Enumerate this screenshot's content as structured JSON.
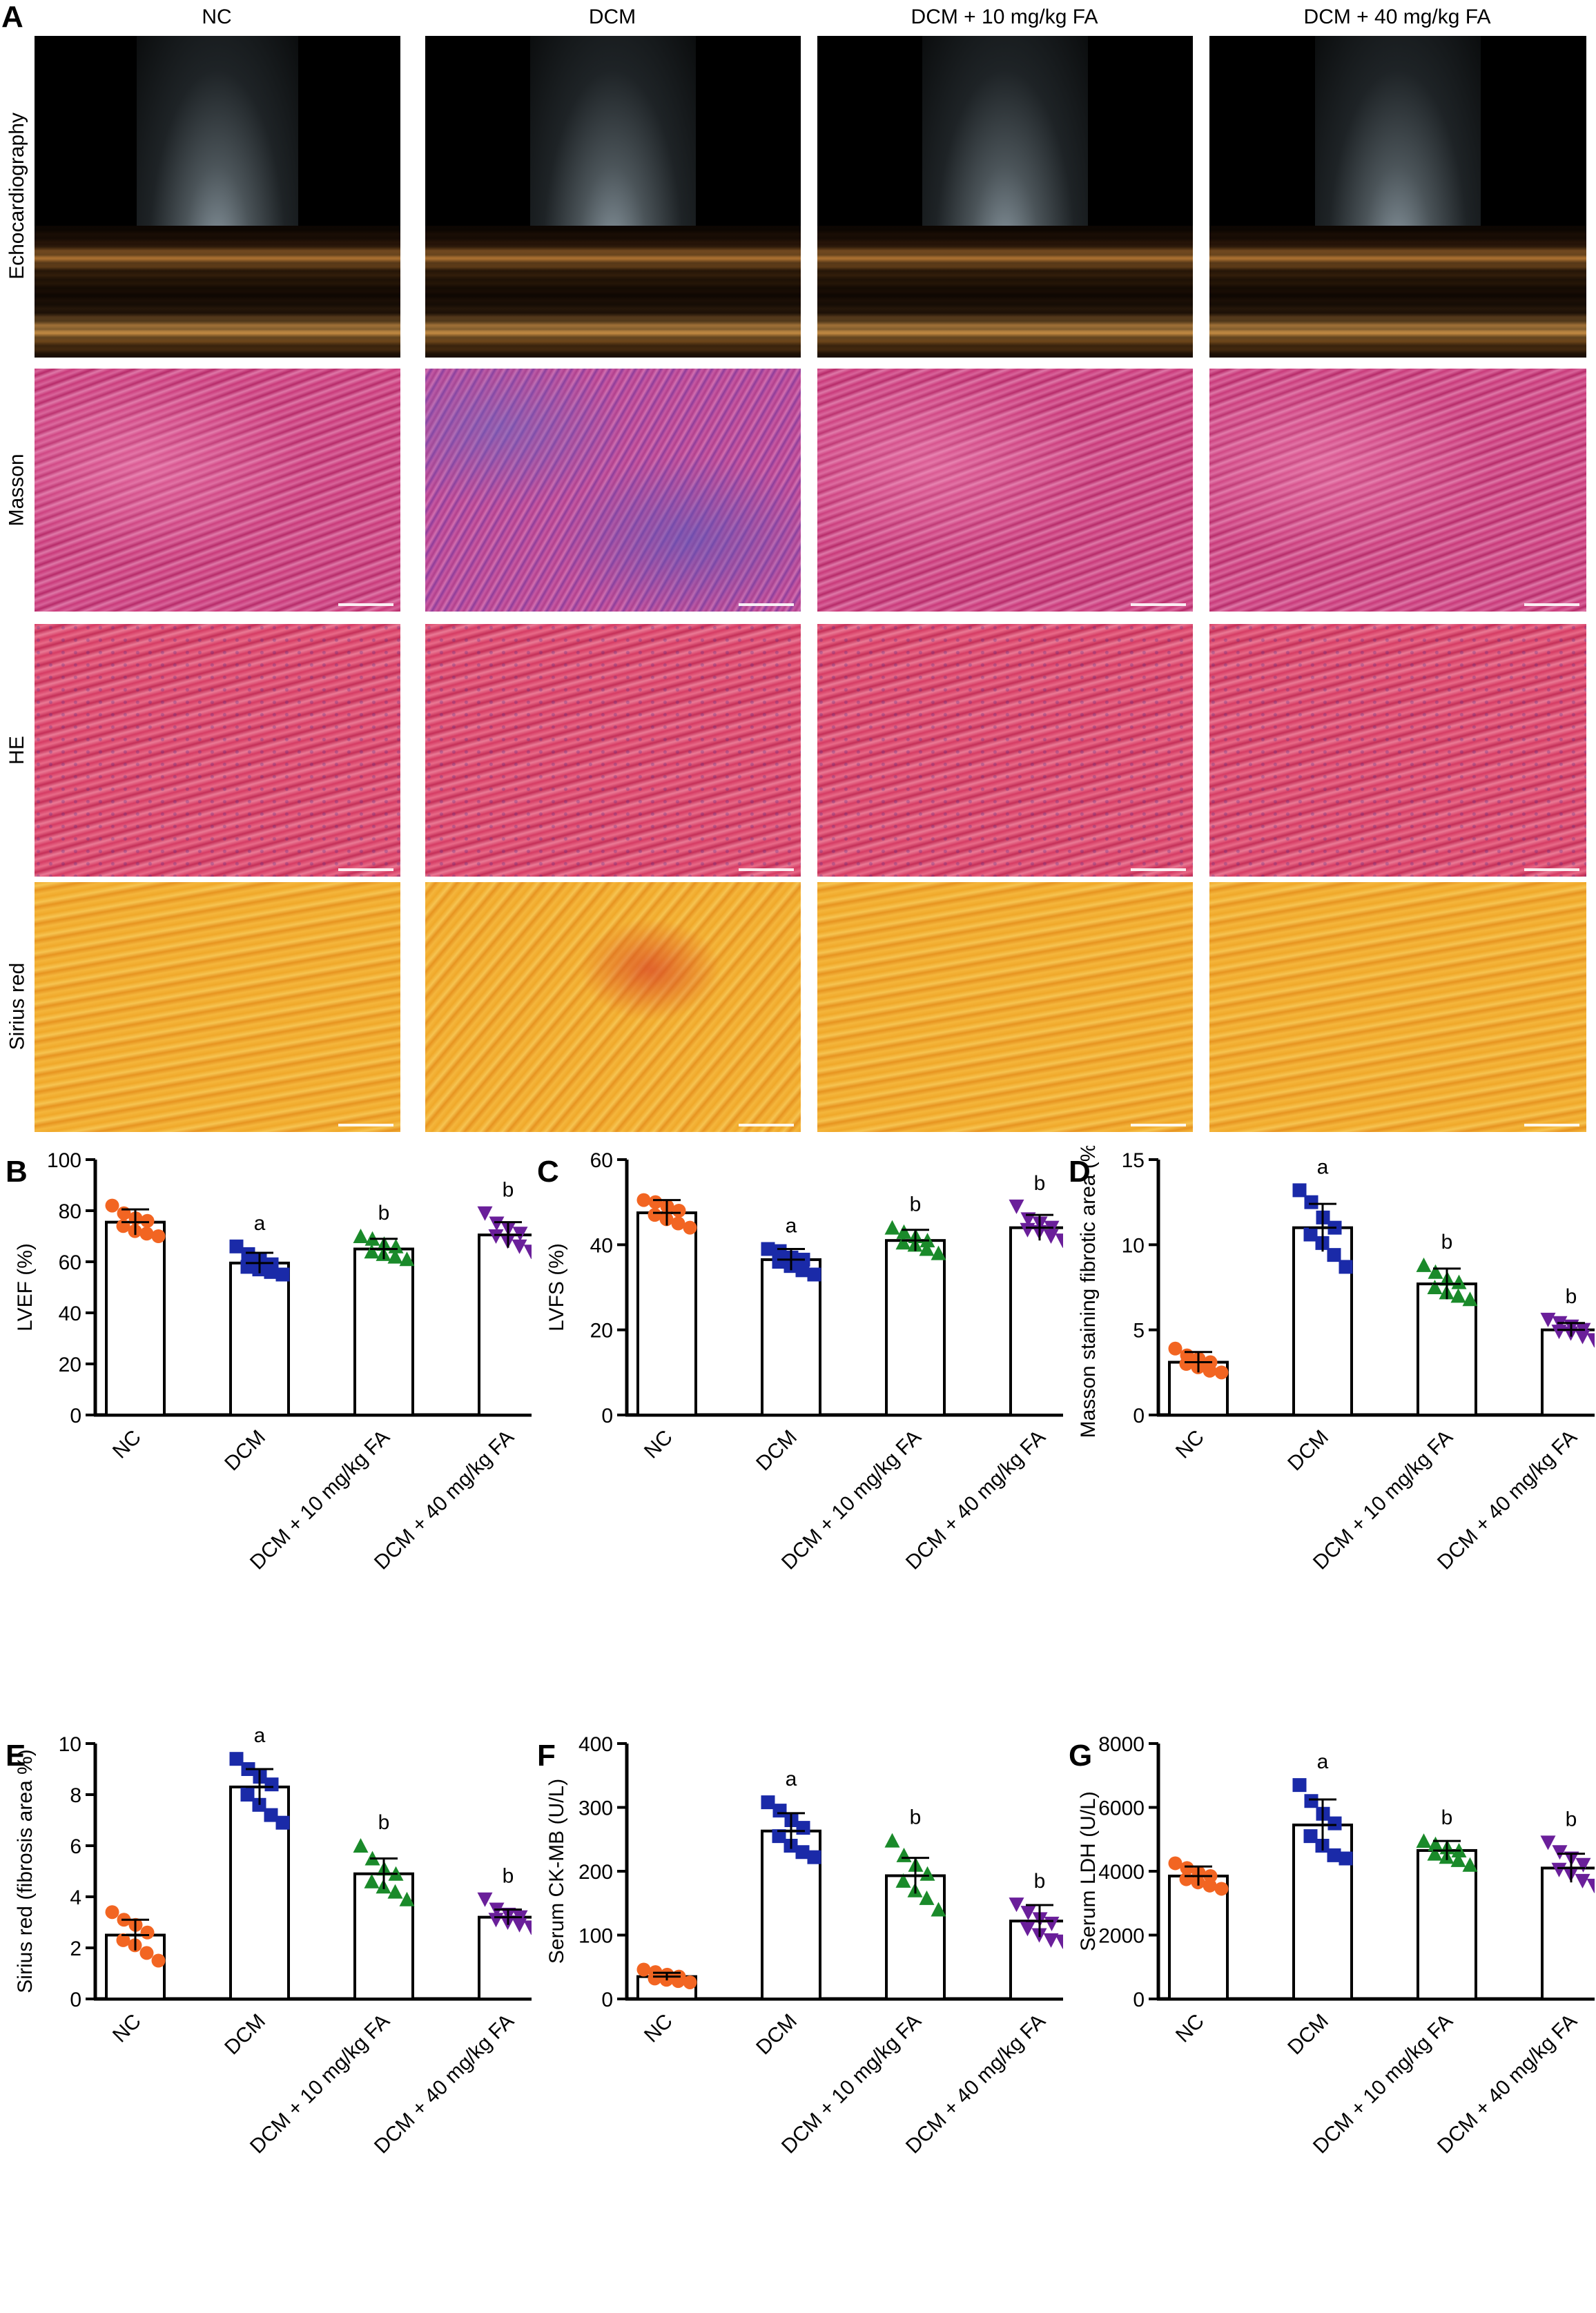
{
  "panel_a": {
    "letter": "A",
    "columns": [
      "NC",
      "DCM",
      "DCM + 10 mg/kg FA",
      "DCM + 40 mg/kg FA"
    ],
    "rows": [
      "Echocardiography",
      "Masson",
      "HE",
      "Sirius red"
    ]
  },
  "colors": {
    "NC": "#f26522",
    "DCM": "#1a2aa8",
    "DCM10": "#1a8a2a",
    "DCM40": "#6a1f9a"
  },
  "chart_data": [
    {
      "panel": "B",
      "type": "bar",
      "categories": [
        "NC",
        "DCM",
        "DCM + 10 mg/kg FA",
        "DCM + 40 mg/kg FA"
      ],
      "means": [
        75.5,
        59.5,
        65,
        70.5
      ],
      "sd": [
        5,
        4,
        4,
        5
      ],
      "points": [
        [
          82,
          79,
          77,
          76,
          74,
          72,
          71,
          70
        ],
        [
          66,
          63,
          61,
          59,
          58,
          57,
          56,
          55
        ],
        [
          70,
          69,
          67,
          66,
          64,
          63,
          62,
          61
        ],
        [
          79,
          75,
          73,
          71,
          70,
          68,
          66,
          64
        ]
      ],
      "sig": [
        "",
        "a",
        "b",
        "b"
      ],
      "ylabel": "LVEF (%)",
      "ylim": [
        0,
        100
      ],
      "yticks": [
        0,
        20,
        40,
        60,
        80,
        100
      ],
      "markers": [
        "circle",
        "square",
        "triangle-up",
        "triangle-down"
      ]
    },
    {
      "panel": "C",
      "type": "bar",
      "categories": [
        "NC",
        "DCM",
        "DCM + 10 mg/kg FA",
        "DCM + 40 mg/kg FA"
      ],
      "means": [
        47.5,
        36.5,
        41,
        44
      ],
      "sd": [
        3,
        2.5,
        2.5,
        3
      ],
      "points": [
        [
          50.5,
          50,
          49,
          48,
          47,
          46,
          45,
          44
        ],
        [
          39,
          38.5,
          37,
          36.5,
          36,
          35,
          34,
          33
        ],
        [
          44,
          43,
          42,
          41,
          40.5,
          40,
          39,
          38
        ],
        [
          49,
          46,
          45,
          44,
          43.5,
          43,
          42,
          41
        ]
      ],
      "sig": [
        "",
        "a",
        "b",
        "b"
      ],
      "ylabel": "LVFS (%)",
      "ylim": [
        0,
        60
      ],
      "yticks": [
        0,
        20,
        40,
        60
      ],
      "markers": [
        "circle",
        "square",
        "triangle-up",
        "triangle-down"
      ]
    },
    {
      "panel": "D",
      "type": "bar",
      "categories": [
        "NC",
        "DCM",
        "DCM + 10 mg/kg FA",
        "DCM + 40 mg/kg FA"
      ],
      "means": [
        3.1,
        11,
        7.7,
        5
      ],
      "sd": [
        0.6,
        1.4,
        0.9,
        0.4
      ],
      "points": [
        [
          3.9,
          3.5,
          3.3,
          3.1,
          3.0,
          2.8,
          2.6,
          2.5
        ],
        [
          13.2,
          12.5,
          11.6,
          11.0,
          10.6,
          10.1,
          9.4,
          8.7
        ],
        [
          8.8,
          8.4,
          8.0,
          7.8,
          7.5,
          7.2,
          7.0,
          6.8
        ],
        [
          5.6,
          5.4,
          5.2,
          5.0,
          4.9,
          4.8,
          4.6,
          4.4
        ]
      ],
      "sig": [
        "",
        "a",
        "b",
        "b"
      ],
      "ylabel": "Masson staining fibrotic area (%)",
      "ylim": [
        0,
        15
      ],
      "yticks": [
        0,
        5,
        10,
        15
      ],
      "markers": [
        "circle",
        "square",
        "triangle-up",
        "triangle-down"
      ]
    },
    {
      "panel": "E",
      "type": "bar",
      "categories": [
        "NC",
        "DCM",
        "DCM + 10 mg/kg FA",
        "DCM + 40 mg/kg FA"
      ],
      "means": [
        2.5,
        8.3,
        4.9,
        3.2
      ],
      "sd": [
        0.6,
        0.7,
        0.6,
        0.3
      ],
      "points": [
        [
          3.4,
          3.1,
          2.9,
          2.6,
          2.3,
          2.1,
          1.8,
          1.5
        ],
        [
          9.4,
          9.0,
          8.7,
          8.4,
          8.0,
          7.6,
          7.2,
          6.9
        ],
        [
          6.0,
          5.5,
          5.1,
          4.9,
          4.6,
          4.4,
          4.2,
          3.9
        ],
        [
          3.9,
          3.5,
          3.3,
          3.2,
          3.1,
          3.0,
          2.9,
          2.8
        ]
      ],
      "sig": [
        "",
        "a",
        "b",
        "b"
      ],
      "ylabel": "Sirius red (fibrosis area %)",
      "ylim": [
        0,
        10
      ],
      "yticks": [
        0,
        2,
        4,
        6,
        8,
        10
      ],
      "markers": [
        "circle",
        "square",
        "triangle-up",
        "triangle-down"
      ]
    },
    {
      "panel": "F",
      "type": "bar",
      "categories": [
        "NC",
        "DCM",
        "DCM + 10 mg/kg FA",
        "DCM + 40 mg/kg FA"
      ],
      "means": [
        35,
        263,
        193,
        122
      ],
      "sd": [
        6,
        28,
        28,
        25
      ],
      "points": [
        [
          46,
          42,
          38,
          35,
          32,
          30,
          28,
          26
        ],
        [
          308,
          295,
          280,
          268,
          255,
          240,
          230,
          222
        ],
        [
          248,
          225,
          210,
          196,
          185,
          170,
          158,
          140
        ],
        [
          148,
          135,
          125,
          118,
          110,
          100,
          92,
          90
        ]
      ],
      "sig": [
        "",
        "a",
        "b",
        "b"
      ],
      "ylabel": "Serum CK-MB (U/L)",
      "ylim": [
        0,
        400
      ],
      "yticks": [
        0,
        100,
        200,
        300,
        400
      ],
      "markers": [
        "circle",
        "square",
        "triangle-up",
        "triangle-down"
      ]
    },
    {
      "panel": "G",
      "type": "bar",
      "categories": [
        "NC",
        "DCM",
        "DCM + 10 mg/kg FA",
        "DCM + 40 mg/kg FA"
      ],
      "means": [
        3850,
        5450,
        4650,
        4100
      ],
      "sd": [
        300,
        800,
        300,
        450
      ],
      "points": [
        [
          4250,
          4100,
          3950,
          3850,
          3750,
          3650,
          3550,
          3450
        ],
        [
          6700,
          6200,
          5800,
          5500,
          5100,
          4800,
          4500,
          4400
        ],
        [
          4950,
          4850,
          4750,
          4650,
          4550,
          4450,
          4350,
          4200
        ],
        [
          4900,
          4600,
          4400,
          4200,
          4050,
          3900,
          3700,
          3550
        ]
      ],
      "sig": [
        "",
        "a",
        "b",
        "b"
      ],
      "ylabel": "Serum LDH (U/L)",
      "ylim": [
        0,
        8000
      ],
      "yticks": [
        0,
        2000,
        4000,
        6000,
        8000
      ],
      "markers": [
        "circle",
        "square",
        "triangle-up",
        "triangle-down"
      ]
    }
  ]
}
